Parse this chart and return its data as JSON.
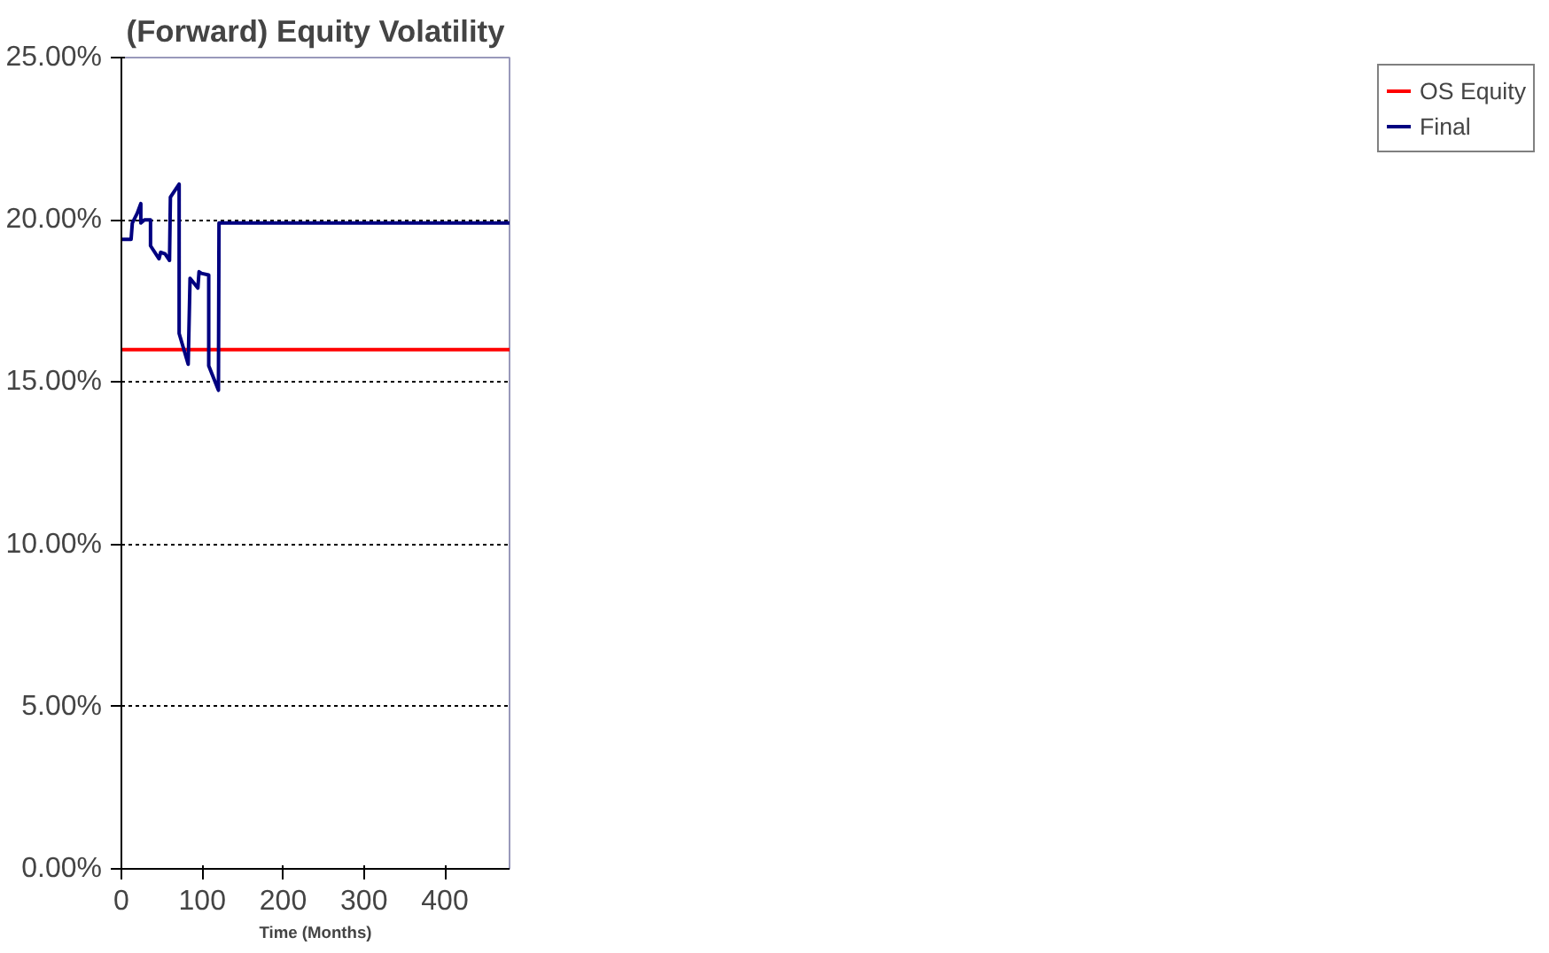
{
  "chart_data": {
    "type": "line",
    "title": "(Forward) Equity Volatility",
    "xlabel": "Time (Months)",
    "xlim": [
      0,
      480
    ],
    "xticks": [
      0,
      100,
      200,
      300,
      400
    ],
    "ylim": [
      0,
      25
    ],
    "yticks": [
      {
        "value": 0,
        "label": "0.00%"
      },
      {
        "value": 5,
        "label": "5.00%"
      },
      {
        "value": 10,
        "label": "10.00%"
      },
      {
        "value": 15,
        "label": "15.00%"
      },
      {
        "value": 20,
        "label": "20.00%"
      },
      {
        "value": 25,
        "label": "25.00%"
      }
    ],
    "grid": "y",
    "legend": "right",
    "marker": "none",
    "line_style": "solid",
    "series": [
      {
        "name": "OS Equity",
        "color": "#ff0000",
        "x": [
          0,
          480
        ],
        "values": [
          16.0,
          16.0
        ]
      },
      {
        "name": "Final",
        "color": "#000080",
        "x": [
          0,
          12,
          13.5,
          19.5,
          24,
          24,
          28.5,
          36,
          36,
          46.5,
          48.6,
          54,
          59.5,
          60.6,
          71.4,
          71.4,
          82.6,
          84.9,
          94.6,
          96,
          99,
          108,
          108,
          120,
          120.7,
          480
        ],
        "values": [
          19.4,
          19.4,
          19.9,
          20.2,
          20.5,
          19.9,
          20.0,
          20.0,
          19.2,
          18.8,
          19.0,
          18.95,
          18.75,
          20.7,
          21.1,
          16.5,
          15.55,
          18.2,
          17.9,
          18.4,
          18.35,
          18.3,
          15.5,
          14.75,
          19.9,
          19.9
        ]
      }
    ]
  }
}
